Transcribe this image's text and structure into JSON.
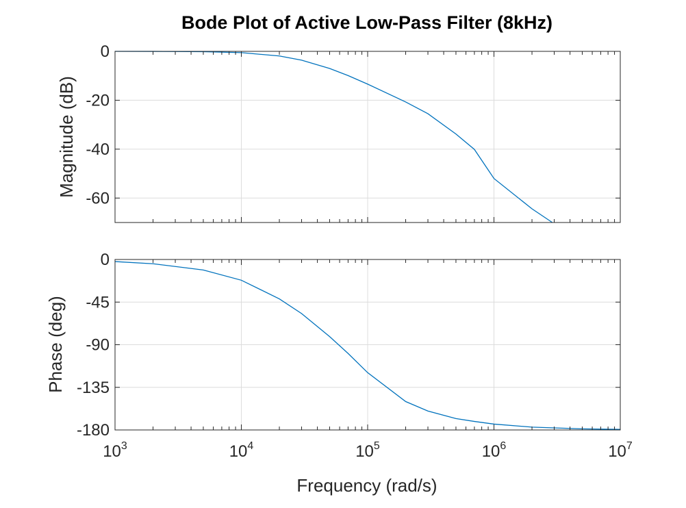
{
  "chart_data": {
    "type": "line",
    "title": "Bode Plot of Active Low-Pass Filter (8kHz)",
    "xlabel": "Frequency (rad/s)",
    "xscale": "log",
    "xlim": [
      1000,
      10000000
    ],
    "x_tick_labels": [
      {
        "base": "10",
        "exp": "3"
      },
      {
        "base": "10",
        "exp": "4"
      },
      {
        "base": "10",
        "exp": "5"
      },
      {
        "base": "10",
        "exp": "6"
      },
      {
        "base": "10",
        "exp": "7"
      }
    ],
    "grid": true,
    "line_color": "#0072bd",
    "subplots": [
      {
        "name": "magnitude",
        "ylabel": "Magnitude (dB)",
        "ylim": [
          -70,
          0
        ],
        "y_tick_labels": [
          "0",
          "-20",
          "-40",
          "-60"
        ],
        "series": [
          {
            "x": [
              1000,
              2000,
              5000,
              10000,
              20000,
              30000,
              50000,
              70000,
              100000,
              200000,
              300000,
              500000,
              700000,
              1000000,
              2000000,
              2900000
            ],
            "y": [
              0,
              -0.02,
              -0.14,
              -0.53,
              -1.9,
              -3.6,
              -7.0,
              -9.9,
              -13.4,
              -20.7,
              -25.5,
              -33.8,
              -40.1,
              -52.0,
              -64.4,
              -70.0
            ]
          }
        ]
      },
      {
        "name": "phase",
        "ylabel": "Phase (deg)",
        "ylim": [
          -180,
          0
        ],
        "y_tick_labels": [
          "0",
          "-45",
          "-90",
          "-135",
          "-180"
        ],
        "series": [
          {
            "x": [
              1000,
              2000,
              5000,
              10000,
              20000,
              30000,
              50000,
              70000,
              100000,
              200000,
              300000,
              500000,
              700000,
              1000000,
              2000000,
              5000000,
              10000000
            ],
            "y": [
              -2.2,
              -4.5,
              -11.1,
              -21.9,
              -41.6,
              -57.1,
              -81.4,
              -99.2,
              -119.5,
              -150.0,
              -160.0,
              -168.0,
              -171.0,
              -173.8,
              -177.0,
              -178.8,
              -179.4
            ]
          }
        ]
      }
    ]
  }
}
